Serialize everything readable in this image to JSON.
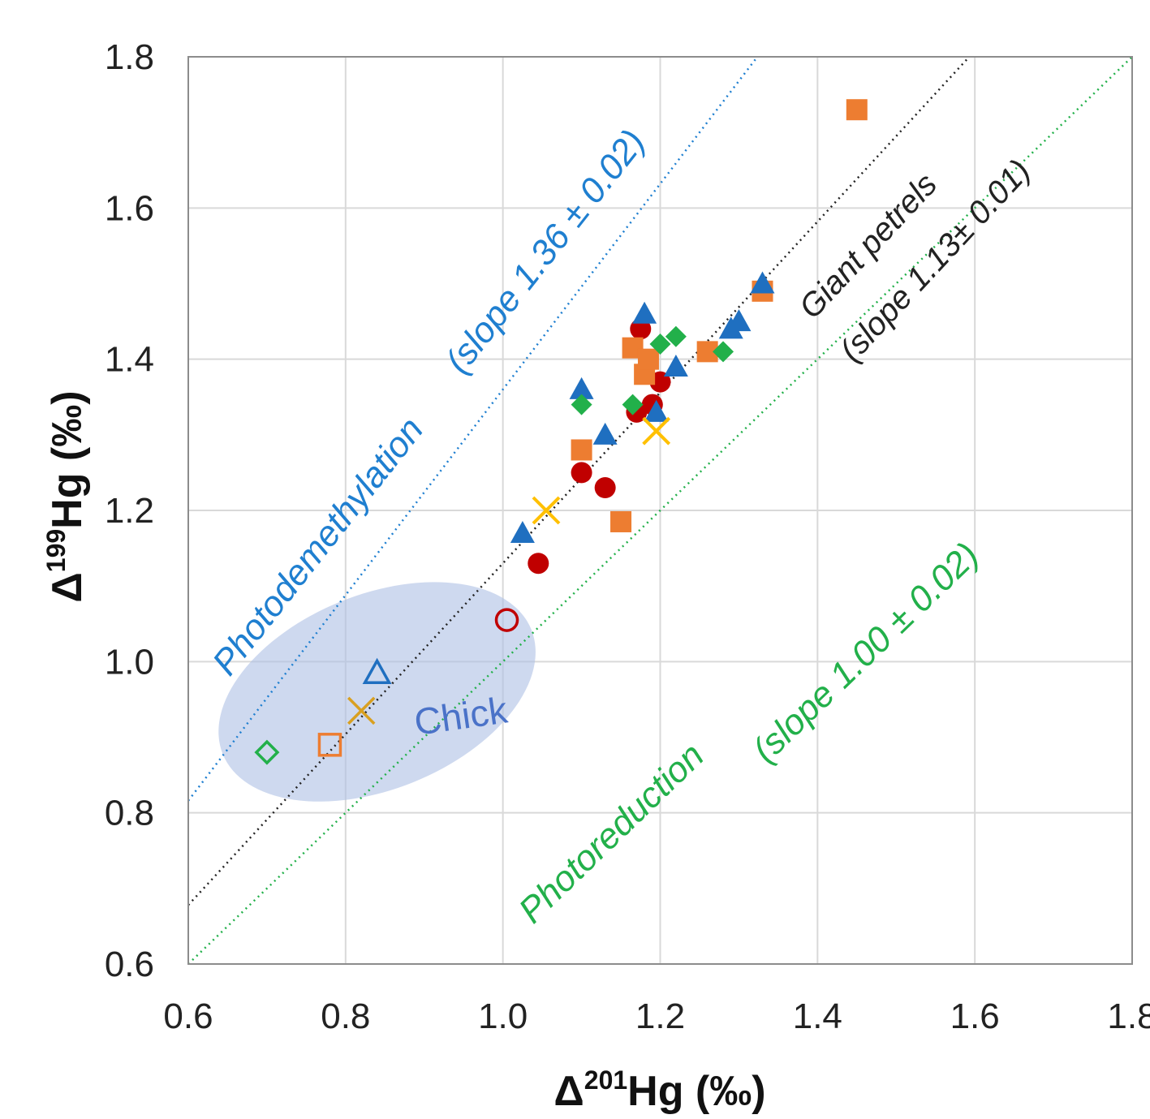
{
  "chart_data": {
    "type": "scatter",
    "xlabel": {
      "prefix": "Δ",
      "sup": "201",
      "suffix": "Hg (‰)"
    },
    "ylabel": {
      "prefix": "Δ",
      "sup": "199",
      "suffix": "Hg (‰)"
    },
    "xlim": [
      0.6,
      1.8
    ],
    "ylim": [
      0.6,
      1.8
    ],
    "xticks": [
      "0.6",
      "0.8",
      "1.0",
      "1.2",
      "1.4",
      "1.6",
      "1.8"
    ],
    "yticks": [
      "0.6",
      "0.8",
      "1.0",
      "1.2",
      "1.4",
      "1.6",
      "1.8"
    ],
    "grid": true,
    "reference_lines": [
      {
        "key": "photodemethylation",
        "slope": 1.36,
        "intercept": 0.0,
        "color": "#1f7fd0",
        "label_main": "Photodemethylation",
        "label_slope": "(slope 1.36 ± 0.02)"
      },
      {
        "key": "giant_petrels",
        "slope": 1.13,
        "intercept": 0.0,
        "color": "#222222",
        "label_main": "Giant petrels",
        "label_slope": "(slope 1.13± 0.01)"
      },
      {
        "key": "photoreduction",
        "slope": 1.0,
        "intercept": 0.0,
        "color": "#22b04a",
        "label_main": "Photoreduction",
        "label_slope": "(slope 1.00 ± 0.02)"
      }
    ],
    "chick_region": {
      "label": "Chick",
      "color": "#aebfe4"
    },
    "series": [
      {
        "marker": "circle",
        "color": "#c00000",
        "filled": true,
        "points": [
          [
            1.045,
            1.13
          ],
          [
            1.1,
            1.25
          ],
          [
            1.13,
            1.23
          ],
          [
            1.17,
            1.33
          ],
          [
            1.175,
            1.44
          ],
          [
            1.19,
            1.34
          ],
          [
            1.2,
            1.37
          ]
        ]
      },
      {
        "marker": "square",
        "color": "#ed7d31",
        "filled": true,
        "points": [
          [
            1.1,
            1.28
          ],
          [
            1.15,
            1.185
          ],
          [
            1.165,
            1.415
          ],
          [
            1.18,
            1.38
          ],
          [
            1.185,
            1.4
          ],
          [
            1.26,
            1.41
          ],
          [
            1.33,
            1.49
          ],
          [
            1.45,
            1.73
          ]
        ]
      },
      {
        "marker": "triangle",
        "color": "#1f6fc0",
        "filled": true,
        "points": [
          [
            1.025,
            1.17
          ],
          [
            1.1,
            1.36
          ],
          [
            1.13,
            1.3
          ],
          [
            1.18,
            1.46
          ],
          [
            1.195,
            1.33
          ],
          [
            1.22,
            1.39
          ],
          [
            1.29,
            1.44
          ],
          [
            1.3,
            1.45
          ],
          [
            1.33,
            1.5
          ]
        ]
      },
      {
        "marker": "diamond",
        "color": "#22b04a",
        "filled": true,
        "points": [
          [
            1.1,
            1.34
          ],
          [
            1.165,
            1.34
          ],
          [
            1.2,
            1.42
          ],
          [
            1.22,
            1.43
          ],
          [
            1.28,
            1.41
          ]
        ]
      },
      {
        "marker": "x",
        "color": "#ffc000",
        "filled": true,
        "points": [
          [
            1.055,
            1.2
          ],
          [
            1.195,
            1.305
          ]
        ]
      },
      {
        "marker": "circle",
        "color": "#c00000",
        "filled": false,
        "points": [
          [
            1.005,
            1.055
          ]
        ]
      },
      {
        "marker": "square",
        "color": "#ed7d31",
        "filled": false,
        "points": [
          [
            0.78,
            0.89
          ]
        ]
      },
      {
        "marker": "triangle",
        "color": "#1f6fc0",
        "filled": false,
        "points": [
          [
            0.84,
            0.985
          ]
        ]
      },
      {
        "marker": "diamond",
        "color": "#22b04a",
        "filled": false,
        "points": [
          [
            0.7,
            0.88
          ]
        ]
      },
      {
        "marker": "x",
        "color": "#d9a020",
        "filled": false,
        "points": [
          [
            0.82,
            0.935
          ]
        ]
      }
    ]
  }
}
